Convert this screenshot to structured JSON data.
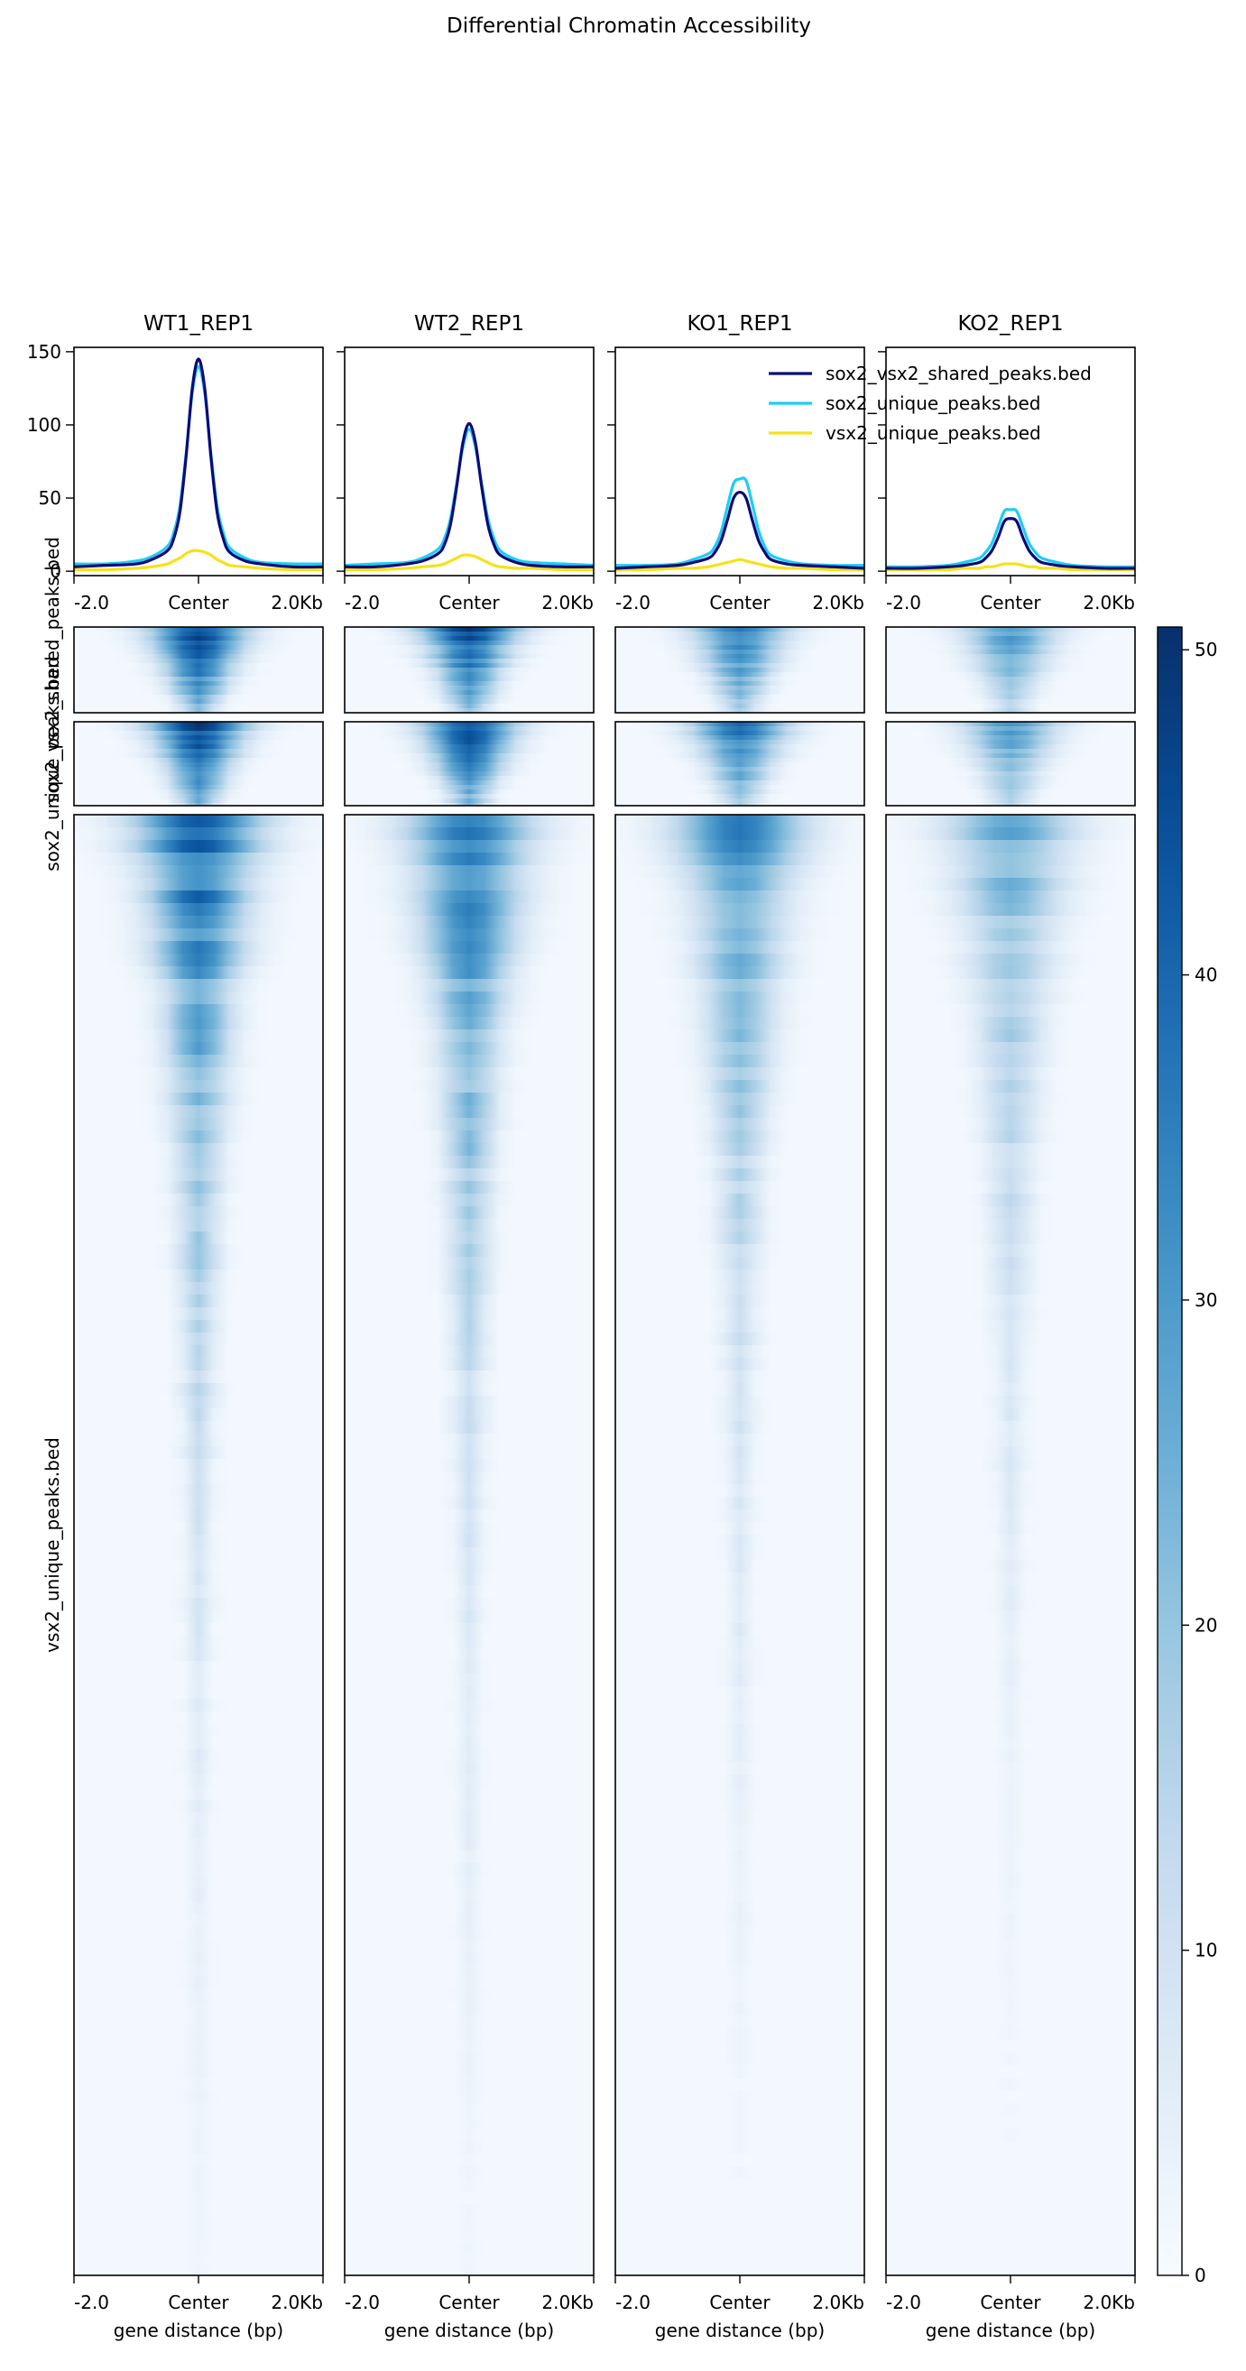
{
  "figure": {
    "title": "Differential Chromatin Accessibility"
  },
  "chart_data": {
    "type": "heatmap",
    "samples": [
      "WT1_REP1",
      "WT2_REP1",
      "KO1_REP1",
      "KO2_REP1"
    ],
    "regions": [
      "sox2_vsx2_shared_peaks.bed",
      "sox2_unique_peaks.bed",
      "vsx2_unique_peaks.bed"
    ],
    "x_tick_labels": [
      "-2.0",
      "Center",
      "2.0Kb"
    ],
    "xlabel": "gene distance (bp)",
    "profile": {
      "type": "line",
      "ylim": [
        -3,
        153
      ],
      "y_ticks": [
        0,
        50,
        100,
        150
      ],
      "x": [
        -2000,
        -1500,
        -1000,
        -750,
        -500,
        -400,
        -300,
        -200,
        -100,
        0,
        100,
        200,
        300,
        400,
        500,
        750,
        1000,
        1500,
        2000
      ],
      "legend_position": "upper-right of KO1_REP1 panel",
      "colors": {
        "sox2_vsx2_shared_peaks.bed": "#0a0a78",
        "sox2_unique_peaks.bed": "#1ccdf4",
        "vsx2_unique_peaks.bed": "#f5e21a"
      },
      "series": [
        {
          "sample": "WT1_REP1",
          "region": "sox2_vsx2_shared_peaks.bed",
          "values": [
            3,
            4,
            5,
            8,
            14,
            22,
            40,
            78,
            125,
            145,
            125,
            78,
            40,
            22,
            13,
            7,
            5,
            3,
            3
          ]
        },
        {
          "sample": "WT1_REP1",
          "region": "sox2_unique_peaks.bed",
          "values": [
            5,
            5,
            7,
            10,
            17,
            26,
            44,
            80,
            122,
            140,
            122,
            80,
            44,
            26,
            16,
            9,
            6,
            5,
            5
          ]
        },
        {
          "sample": "WT1_REP1",
          "region": "vsx2_unique_peaks.bed",
          "values": [
            1,
            1,
            2,
            3,
            5,
            7,
            9,
            12,
            14,
            14,
            13,
            11,
            8,
            6,
            4,
            3,
            2,
            1,
            1
          ]
        },
        {
          "sample": "WT2_REP1",
          "region": "sox2_vsx2_shared_peaks.bed",
          "values": [
            3,
            3,
            5,
            7,
            12,
            18,
            32,
            58,
            88,
            101,
            88,
            58,
            32,
            18,
            11,
            6,
            4,
            3,
            3
          ]
        },
        {
          "sample": "WT2_REP1",
          "region": "sox2_unique_peaks.bed",
          "values": [
            4,
            5,
            6,
            9,
            15,
            22,
            36,
            60,
            85,
            97,
            85,
            60,
            36,
            22,
            14,
            8,
            6,
            5,
            4
          ]
        },
        {
          "sample": "WT2_REP1",
          "region": "vsx2_unique_peaks.bed",
          "values": [
            1,
            1,
            2,
            3,
            4,
            5,
            7,
            9,
            11,
            11,
            10,
            8,
            6,
            4,
            3,
            2,
            2,
            1,
            1
          ]
        },
        {
          "sample": "KO1_REP1",
          "region": "sox2_vsx2_shared_peaks.bed",
          "values": [
            2,
            3,
            4,
            6,
            9,
            13,
            21,
            35,
            50,
            54,
            50,
            35,
            21,
            13,
            8,
            5,
            4,
            3,
            2
          ]
        },
        {
          "sample": "KO1_REP1",
          "region": "sox2_unique_peaks.bed",
          "values": [
            4,
            4,
            5,
            8,
            12,
            17,
            27,
            44,
            60,
            63,
            62,
            46,
            28,
            17,
            11,
            7,
            5,
            4,
            4
          ]
        },
        {
          "sample": "KO1_REP1",
          "region": "vsx2_unique_peaks.bed",
          "values": [
            1,
            1,
            2,
            2,
            3,
            4,
            5,
            6,
            7,
            8,
            7,
            6,
            5,
            4,
            3,
            2,
            2,
            1,
            1
          ]
        },
        {
          "sample": "KO2_REP1",
          "region": "sox2_vsx2_shared_peaks.bed",
          "values": [
            2,
            2,
            3,
            4,
            6,
            9,
            14,
            23,
            34,
            36,
            34,
            23,
            14,
            9,
            6,
            4,
            3,
            2,
            2
          ]
        },
        {
          "sample": "KO2_REP1",
          "region": "sox2_unique_peaks.bed",
          "values": [
            3,
            3,
            4,
            6,
            9,
            13,
            19,
            30,
            41,
            42,
            41,
            30,
            19,
            13,
            9,
            6,
            4,
            3,
            3
          ]
        },
        {
          "sample": "KO2_REP1",
          "region": "vsx2_unique_peaks.bed",
          "values": [
            1,
            1,
            1,
            2,
            2,
            3,
            3,
            4,
            5,
            5,
            5,
            4,
            3,
            3,
            2,
            2,
            1,
            1,
            1
          ]
        }
      ]
    },
    "heatmap": {
      "colormap": "Blues",
      "colormap_stops": [
        "#f7fbff",
        "#deebf7",
        "#c6dbef",
        "#9ecae1",
        "#6baed6",
        "#4292c6",
        "#2171b5",
        "#08519c",
        "#08306b"
      ],
      "zlim": [
        0,
        50.7
      ],
      "colorbar_ticks": [
        0,
        10,
        20,
        30,
        40,
        50
      ],
      "sample_intensity": {
        "WT1_REP1": 1.0,
        "WT2_REP1": 0.95,
        "KO1_REP1": 0.78,
        "KO2_REP1": 0.62
      },
      "region_relative_rows": {
        "sox2_vsx2_shared_peaks.bed": 1,
        "sox2_unique_peaks.bed": 1,
        "vsx2_unique_peaks.bed": 17.6
      }
    }
  }
}
